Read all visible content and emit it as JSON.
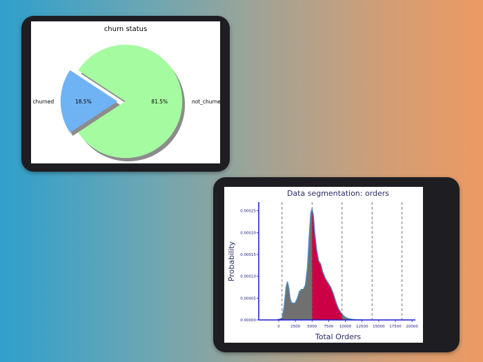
{
  "chart_data": [
    {
      "type": "pie",
      "title": "churn status",
      "slices": [
        {
          "label": "churned",
          "value": 18.5,
          "display": "18.5%",
          "color": "#6fb3f5",
          "exploded": true
        },
        {
          "label": "not_churned",
          "value": 81.5,
          "display": "81.5%",
          "color": "#a5fba0",
          "exploded": false
        }
      ],
      "shadow": true
    },
    {
      "type": "area",
      "title": "Data segmentation: orders",
      "xlabel": "Total Orders",
      "ylabel": "Probability",
      "xlim": [
        -3000,
        20500
      ],
      "ylim": [
        0,
        0.00027
      ],
      "xticks": [
        0,
        2500,
        5000,
        7500,
        10000,
        12500,
        15000,
        17500,
        20000
      ],
      "yticks": [
        0,
        5e-05,
        0.0001,
        0.00015,
        0.0002,
        0.00025
      ],
      "ytick_labels": [
        "0.00000",
        "0.00005",
        "0.00010",
        "0.00015",
        "0.00020",
        "0.00025"
      ],
      "segment_lines": [
        500,
        5000,
        9500,
        14000,
        18500
      ],
      "series": [
        {
          "x": [
            -300,
            500,
            800,
            1100,
            1300,
            1500,
            1700,
            1900,
            2200,
            2500,
            2800,
            3100,
            3400,
            3700,
            4000,
            4300,
            4600,
            4800,
            5000,
            5200,
            5400,
            5700,
            6000,
            6300,
            6600,
            7000,
            7400,
            7800,
            8200,
            8600,
            9000,
            9500,
            10000,
            10500,
            11000,
            11500,
            12500
          ],
          "y": [
            0,
            4e-06,
            3e-05,
            7.5e-05,
            8.8e-05,
            7.5e-05,
            5e-05,
            4e-05,
            3.8e-05,
            4e-05,
            5e-05,
            6.5e-05,
            7e-05,
            7e-05,
            8e-05,
            0.00012,
            0.0002,
            0.000245,
            0.000255,
            0.00024,
            0.0002,
            0.00016,
            0.000135,
            0.000128,
            0.00011,
            9.5e-05,
            8.5e-05,
            7.5e-05,
            6e-05,
            4e-05,
            2.5e-05,
            1.3e-05,
            6e-06,
            3e-06,
            1.5e-06,
            5e-07,
            0
          ]
        }
      ],
      "fill_colors": [
        "#cc0044",
        "#707070"
      ],
      "outline_color": "#4f8fc8"
    }
  ]
}
